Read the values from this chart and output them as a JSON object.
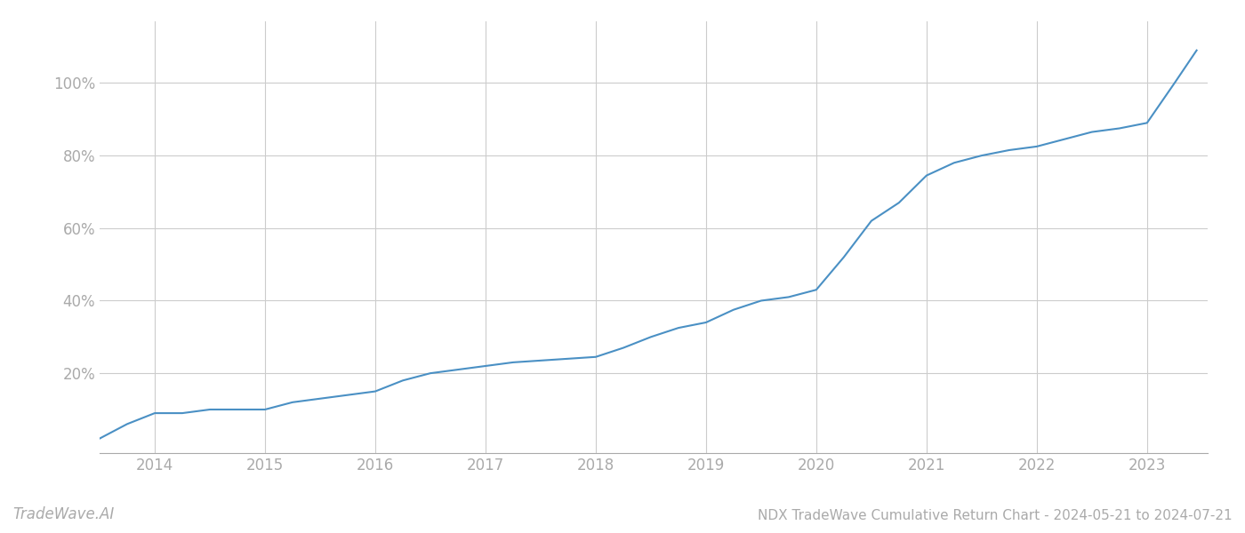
{
  "title": "NDX TradeWave Cumulative Return Chart - 2024-05-21 to 2024-07-21",
  "watermark": "TradeWave.AI",
  "line_color": "#4a90c4",
  "background_color": "#ffffff",
  "grid_color": "#cccccc",
  "x_years": [
    2014,
    2015,
    2016,
    2017,
    2018,
    2019,
    2020,
    2021,
    2022,
    2023
  ],
  "y_ticks": [
    0.2,
    0.4,
    0.6,
    0.8,
    1.0
  ],
  "y_tick_labels": [
    "20%",
    "40%",
    "60%",
    "80%",
    "100%"
  ],
  "data_x": [
    2013.5,
    2013.75,
    2014.0,
    2014.25,
    2014.5,
    2014.75,
    2015.0,
    2015.25,
    2015.5,
    2015.75,
    2016.0,
    2016.25,
    2016.5,
    2016.75,
    2017.0,
    2017.25,
    2017.5,
    2017.75,
    2018.0,
    2018.25,
    2018.5,
    2018.75,
    2019.0,
    2019.25,
    2019.5,
    2019.75,
    2020.0,
    2020.25,
    2020.5,
    2020.75,
    2021.0,
    2021.25,
    2021.5,
    2021.75,
    2022.0,
    2022.25,
    2022.5,
    2022.75,
    2023.0,
    2023.25,
    2023.45
  ],
  "data_y": [
    0.02,
    0.06,
    0.09,
    0.09,
    0.1,
    0.1,
    0.1,
    0.12,
    0.13,
    0.14,
    0.15,
    0.18,
    0.2,
    0.21,
    0.22,
    0.23,
    0.235,
    0.24,
    0.245,
    0.27,
    0.3,
    0.325,
    0.34,
    0.375,
    0.4,
    0.41,
    0.43,
    0.52,
    0.62,
    0.67,
    0.745,
    0.78,
    0.8,
    0.815,
    0.825,
    0.845,
    0.865,
    0.875,
    0.89,
    1.0,
    1.09
  ],
  "xlim": [
    2013.5,
    2023.55
  ],
  "ylim": [
    -0.02,
    1.17
  ],
  "line_width": 1.5,
  "title_fontsize": 11,
  "tick_fontsize": 12,
  "watermark_fontsize": 12
}
